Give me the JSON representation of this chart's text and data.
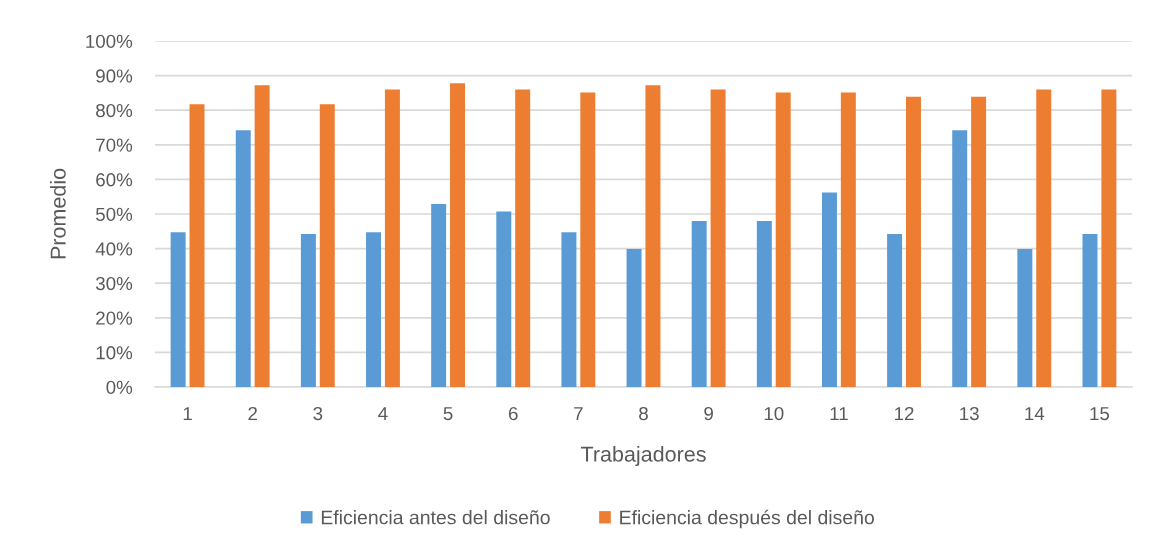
{
  "chart_data": {
    "type": "bar",
    "xlabel": "Trabajadores",
    "ylabel": "Promedio",
    "categories": [
      "1",
      "2",
      "3",
      "4",
      "5",
      "6",
      "7",
      "8",
      "9",
      "10",
      "11",
      "12",
      "13",
      "14",
      "15"
    ],
    "series": [
      {
        "name": "Eficiencia antes del diseño",
        "color": "#5b9bd5",
        "values": [
          44.7,
          74.2,
          44.2,
          44.7,
          52.9,
          50.7,
          44.7,
          39.9,
          48.0,
          48.0,
          56.2,
          44.2,
          74.2,
          39.9,
          44.2
        ]
      },
      {
        "name": "Eficiencia después del diseño",
        "color": "#ed7d31",
        "values": [
          81.7,
          87.2,
          81.7,
          86.0,
          87.8,
          86.0,
          85.1,
          87.2,
          86.0,
          85.1,
          85.1,
          83.9,
          83.9,
          86.0,
          86.0
        ]
      }
    ],
    "ylim": [
      0,
      100
    ],
    "yticks": [
      {
        "value": 0,
        "label": "0%"
      },
      {
        "value": 10,
        "label": "10%"
      },
      {
        "value": 20,
        "label": "20%"
      },
      {
        "value": 30,
        "label": "30%"
      },
      {
        "value": 40,
        "label": "40%"
      },
      {
        "value": 50,
        "label": "50%"
      },
      {
        "value": 60,
        "label": "60%"
      },
      {
        "value": 70,
        "label": "70%"
      },
      {
        "value": 80,
        "label": "80%"
      },
      {
        "value": 90,
        "label": "90%"
      },
      {
        "value": 100,
        "label": "100%"
      }
    ],
    "grid": "y",
    "legend": "bottom"
  }
}
